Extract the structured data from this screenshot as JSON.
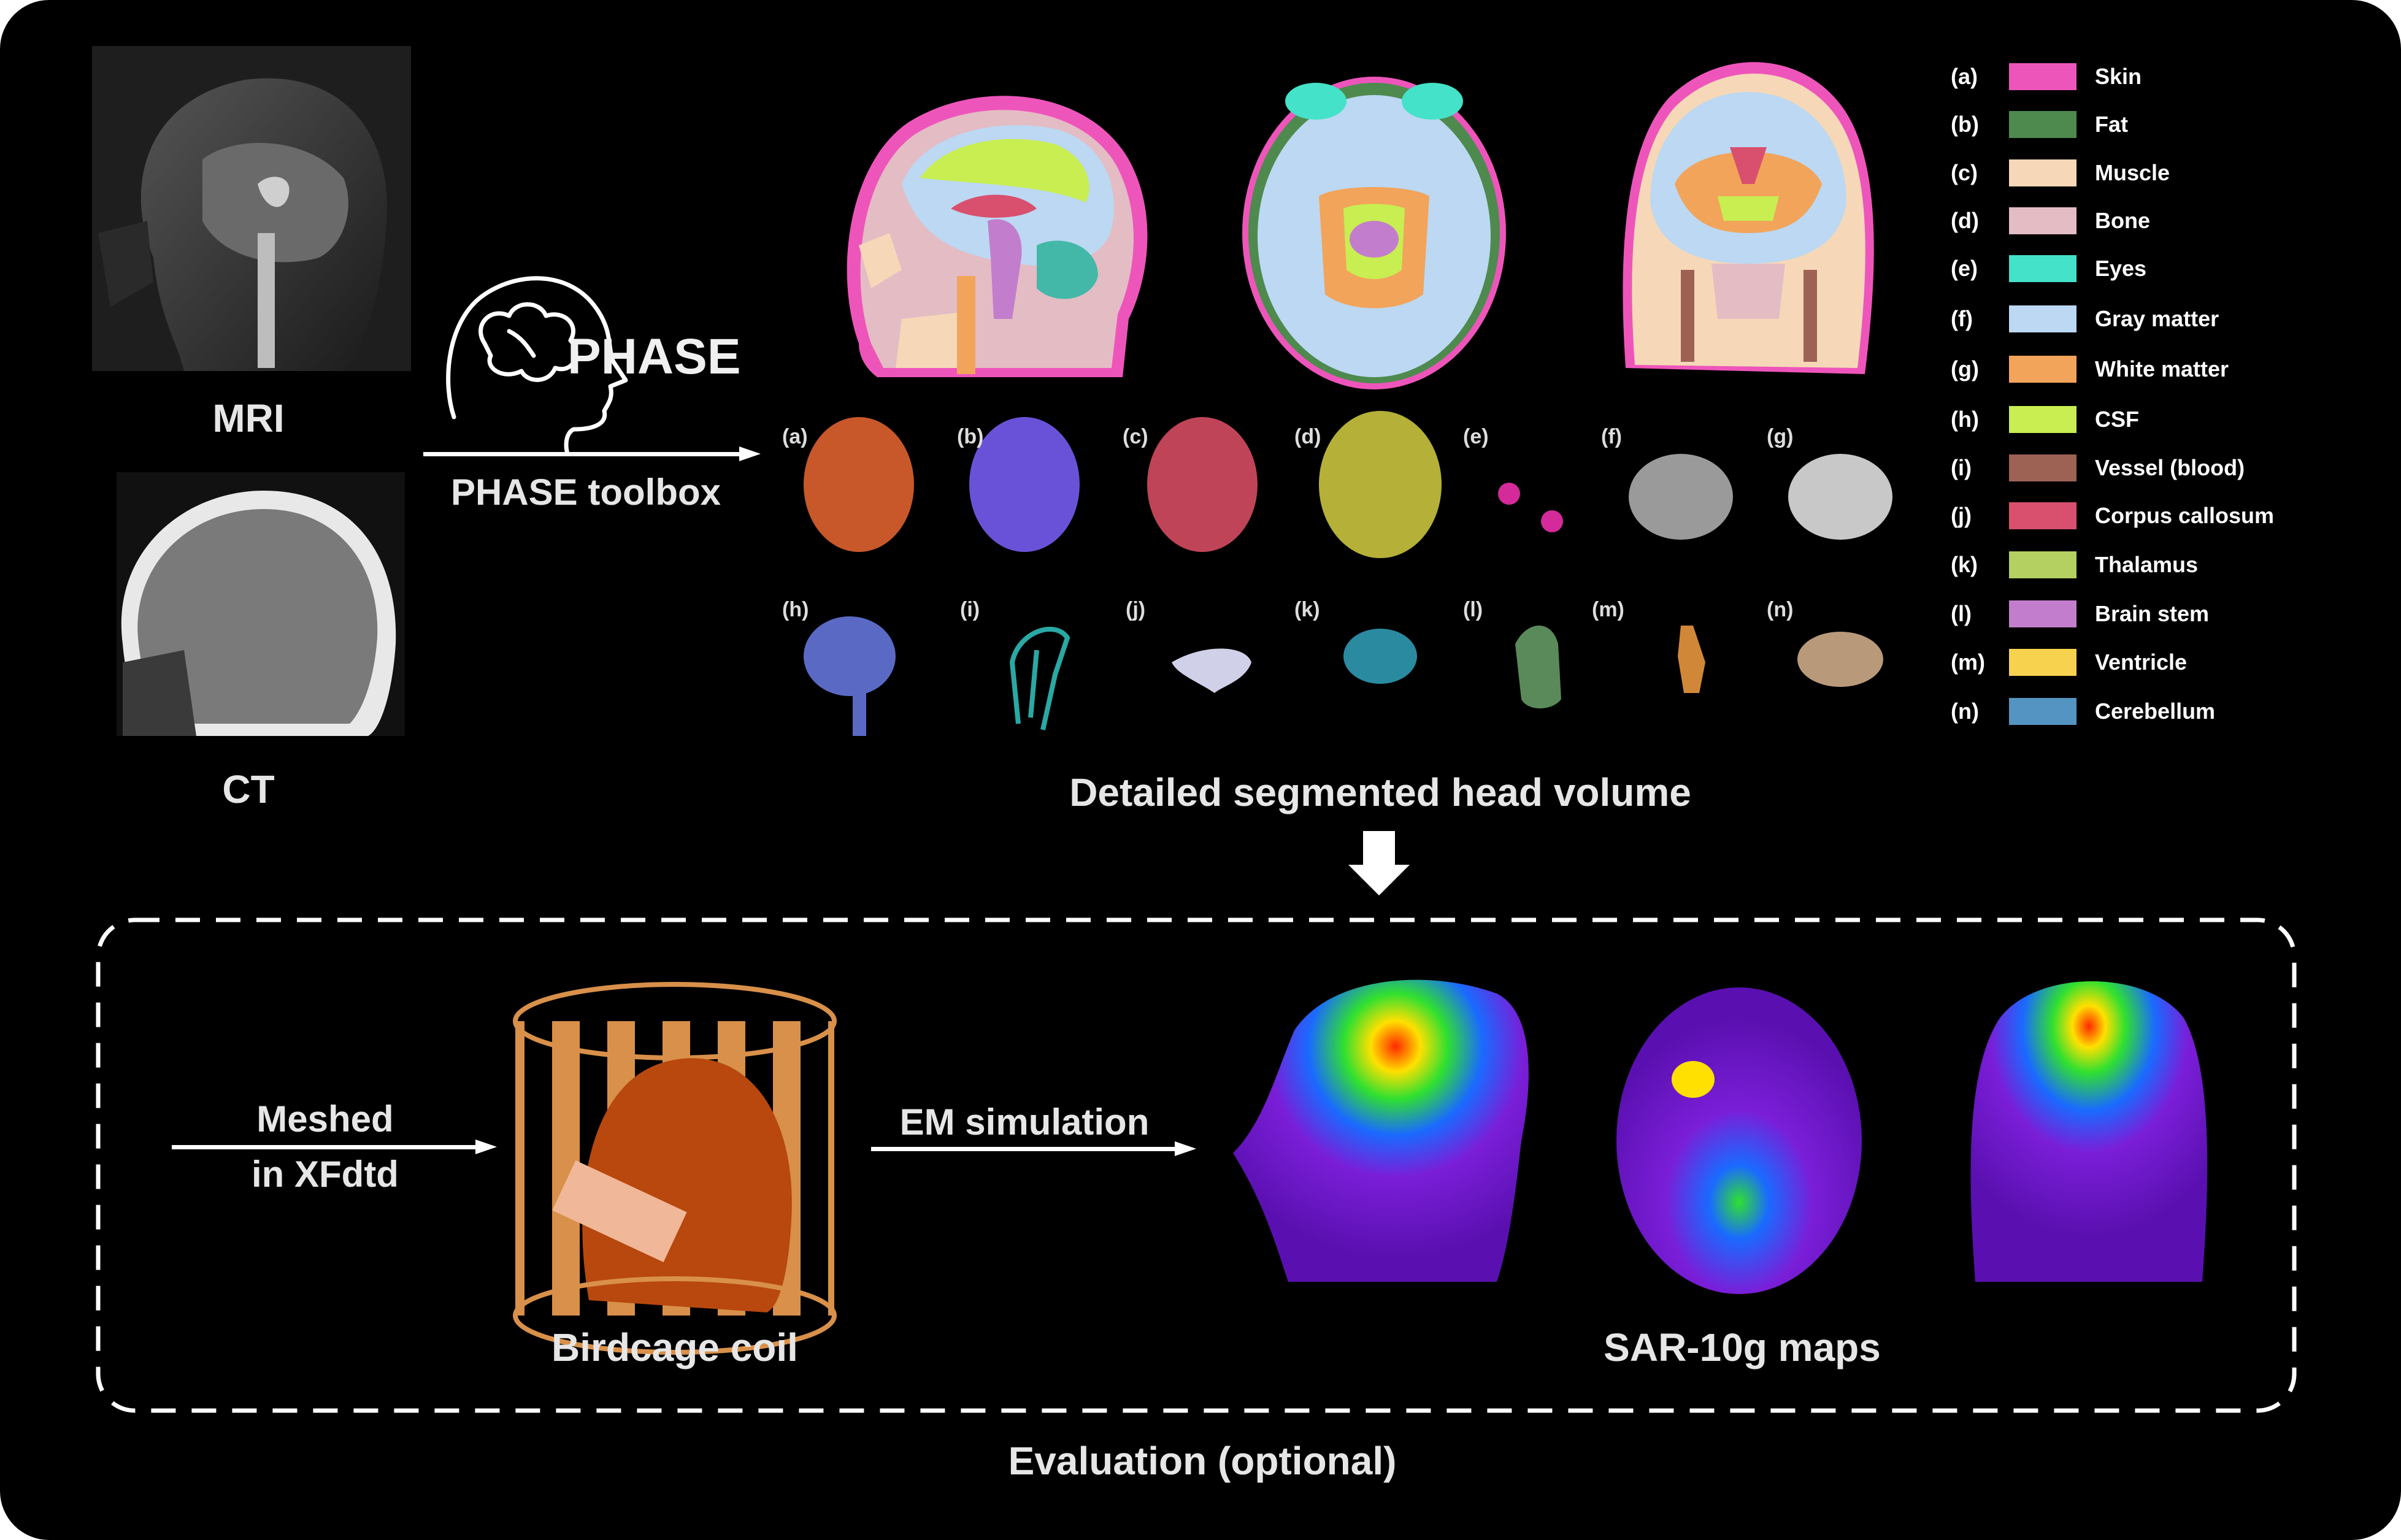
{
  "labels": {
    "mri": "MRI",
    "ct": "CT",
    "phase_logo": "PHASE",
    "phase_toolbox": "PHASE toolbox",
    "segmented": "Detailed segmented head volume",
    "meshed_line1": "Meshed",
    "meshed_line2": "in XFdtd",
    "em_simulation": "EM simulation",
    "birdcage": "Birdcage coil",
    "sar_maps": "SAR-10g maps",
    "evaluation": "Evaluation (optional)"
  },
  "legend": [
    {
      "code": "(a)",
      "name": "Skin",
      "color": "#ee55bb"
    },
    {
      "code": "(b)",
      "name": "Fat",
      "color": "#4e8a4e"
    },
    {
      "code": "(c)",
      "name": "Muscle",
      "color": "#f6d8b8"
    },
    {
      "code": "(d)",
      "name": "Bone",
      "color": "#e4bcc4"
    },
    {
      "code": "(e)",
      "name": "Eyes",
      "color": "#44e2c8"
    },
    {
      "code": "(f)",
      "name": "Gray matter",
      "color": "#bcd8f2"
    },
    {
      "code": "(g)",
      "name": "White matter",
      "color": "#f2a45a"
    },
    {
      "code": "(h)",
      "name": "CSF",
      "color": "#c8ee52"
    },
    {
      "code": "(i)",
      "name": "Vessel (blood)",
      "color": "#9e6255"
    },
    {
      "code": "(j)",
      "name": "Corpus callosum",
      "color": "#d8506e"
    },
    {
      "code": "(k)",
      "name": "Thalamus",
      "color": "#b4d060"
    },
    {
      "code": "(l)",
      "name": "Brain stem",
      "color": "#c27ecc"
    },
    {
      "code": "(m)",
      "name": "Ventricle",
      "color": "#f6d24e"
    },
    {
      "code": "(n)",
      "name": "Cerebellum",
      "color": "#5494c2"
    }
  ],
  "tissue_renders": [
    {
      "code": "(a)",
      "color": "#c8582a"
    },
    {
      "code": "(b)",
      "color": "#6a52d8"
    },
    {
      "code": "(c)",
      "color": "#c04458"
    },
    {
      "code": "(d)",
      "color": "#b4b038"
    },
    {
      "code": "(e)",
      "color": "#d42a9a"
    },
    {
      "code": "(f)",
      "color": "#9a9a9a"
    },
    {
      "code": "(g)",
      "color": "#c8c8c8"
    },
    {
      "code": "(h)",
      "color": "#5a6ac4"
    },
    {
      "code": "(i)",
      "color": "#2aa8a4"
    },
    {
      "code": "(j)",
      "color": "#d0d0e8"
    },
    {
      "code": "(k)",
      "color": "#2a8aa0"
    },
    {
      "code": "(l)",
      "color": "#5a8a5a"
    },
    {
      "code": "(m)",
      "color": "#d08838"
    },
    {
      "code": "(n)",
      "color": "#b89a7a"
    }
  ],
  "colors": {
    "background": "#000000",
    "text": "#e6e6e6",
    "coil": "#e0a060",
    "sar_low": "#7a1ed8",
    "sar_high": "#ff2a00"
  }
}
